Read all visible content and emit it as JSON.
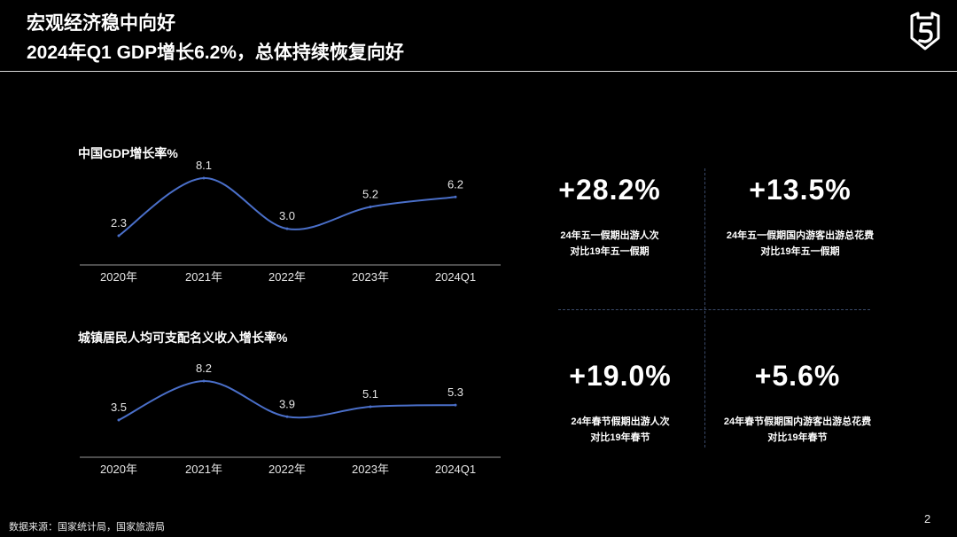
{
  "header": {
    "title": "宏观经济稳中向好",
    "subtitle": "2024年Q1 GDP增长6.2%，总体持续恢复向好"
  },
  "colors": {
    "background": "#000000",
    "line": "#4a6fc9",
    "text": "#ffffff"
  },
  "chart_data": [
    {
      "type": "line",
      "title": "中国GDP增长率%",
      "categories": [
        "2020年",
        "2021年",
        "2022年",
        "2023年",
        "2024Q1"
      ],
      "series": [
        {
          "values": [
            2.3,
            8.1,
            3.0,
            5.2,
            6.2
          ]
        }
      ],
      "ylim": [
        2.3,
        8.1
      ],
      "grid": false
    },
    {
      "type": "line",
      "title": "城镇居民人均可支配名义收入增长率%",
      "categories": [
        "2020年",
        "2021年",
        "2022年",
        "2023年",
        "2024Q1"
      ],
      "series": [
        {
          "values": [
            3.5,
            8.2,
            3.9,
            5.1,
            5.3
          ]
        }
      ],
      "ylim": [
        3.5,
        8.2
      ],
      "grid": false
    }
  ],
  "kpis": [
    {
      "value": "+28.2%",
      "line1": "24年五一假期出游人次",
      "line2": "对比19年五一假期"
    },
    {
      "value": "+13.5%",
      "line1": "24年五一假期国内游客出游总花费",
      "line2": "对比19年五一假期"
    },
    {
      "value": "+19.0%",
      "line1": "24年春节假期出游人次",
      "line2": "对比19年春节"
    },
    {
      "value": "+5.6%",
      "line1": "24年春节假期国内游客出游总花费",
      "line2": "对比19年春节"
    }
  ],
  "footer": {
    "source": "数据来源：国家统计局，国家旅游局",
    "page": "2"
  }
}
